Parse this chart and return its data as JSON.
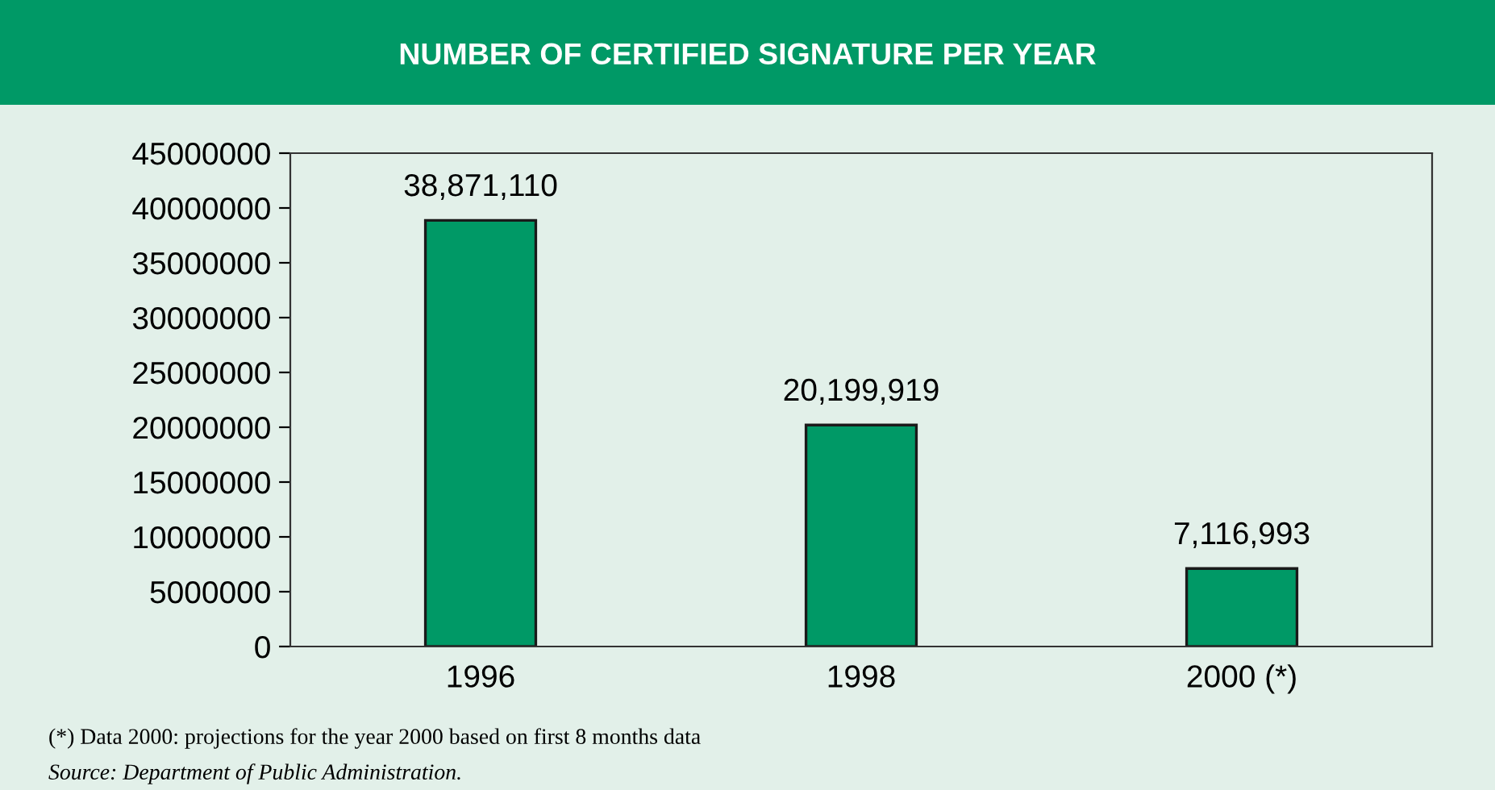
{
  "chart_data": {
    "type": "bar",
    "title": "NUMBER OF CERTIFIED SIGNATURE PER YEAR",
    "categories": [
      "1996",
      "1998",
      "2000 (*)"
    ],
    "values": [
      38871110,
      20199919,
      7116993
    ],
    "value_labels": [
      "38,871,110",
      "20,199,919",
      "7,116,993"
    ],
    "color": "#009966",
    "ylim": [
      0,
      45000000
    ],
    "yticks": [
      0,
      5000000,
      10000000,
      15000000,
      20000000,
      25000000,
      30000000,
      35000000,
      40000000,
      45000000
    ],
    "grid": false,
    "legend": false,
    "annotations": [
      "(*) Data 2000: projections for the year 2000 based on first 8 months data",
      "Source: Department of Public Administration."
    ]
  }
}
